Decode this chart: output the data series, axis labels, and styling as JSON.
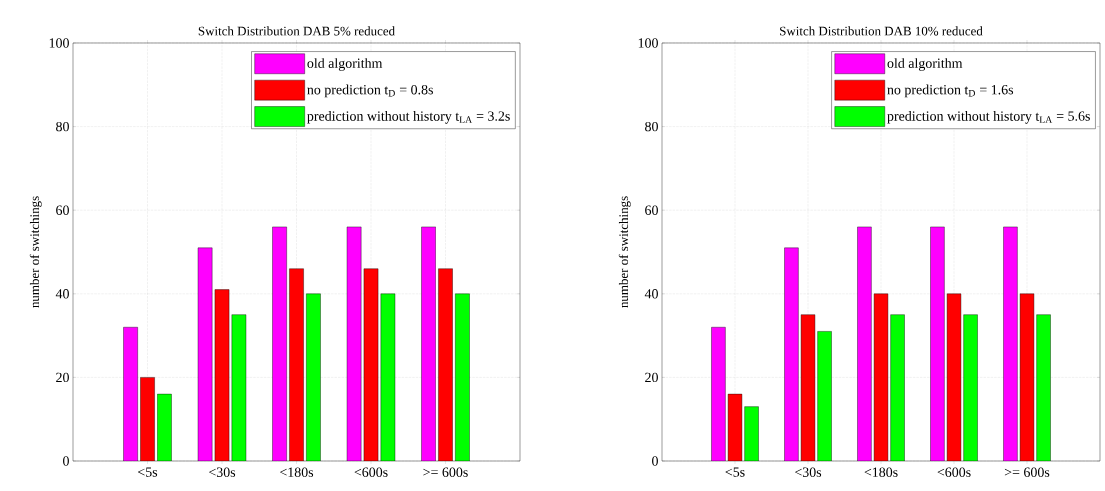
{
  "chart_data": [
    {
      "type": "bar",
      "title": "Switch Distribution DAB 5% reduced",
      "ylabel": "number of switchings",
      "categories": [
        "<5s",
        "<30s",
        "<180s",
        "<600s",
        ">= 600s"
      ],
      "series": [
        {
          "name": "old algorithm",
          "color": "#ff00ff",
          "values": [
            32,
            51,
            56,
            56,
            56
          ]
        },
        {
          "name": "no prediction t$_{D}$ = 0.8s",
          "color": "#ff0000",
          "values": [
            20,
            41,
            46,
            46,
            46
          ]
        },
        {
          "name": "prediction without history t$_{LA}$ = 3.2s",
          "color": "#00ff00",
          "values": [
            16,
            35,
            40,
            40,
            40
          ]
        }
      ],
      "ylim": [
        0,
        100
      ],
      "yticks": [
        0,
        20,
        40,
        60,
        80,
        100
      ],
      "grid": true,
      "legend": "top right"
    },
    {
      "type": "bar",
      "title": "Switch Distribution DAB 10% reduced",
      "ylabel": "number of switchings",
      "categories": [
        "<5s",
        "<30s",
        "<180s",
        "<600s",
        ">= 600s"
      ],
      "series": [
        {
          "name": "old algorithm",
          "color": "#ff00ff",
          "values": [
            32,
            51,
            56,
            56,
            56
          ]
        },
        {
          "name": "no prediction t$_{D}$ = 1.6s",
          "color": "#ff0000",
          "values": [
            16,
            35,
            40,
            40,
            40
          ]
        },
        {
          "name": "prediction without history t$_{LA}$ = 5.6s",
          "color": "#00ff00",
          "values": [
            13,
            31,
            35,
            35,
            35
          ]
        }
      ],
      "ylim": [
        0,
        100
      ],
      "yticks": [
        0,
        20,
        40,
        60,
        80,
        100
      ],
      "grid": true,
      "legend": "top right"
    }
  ]
}
